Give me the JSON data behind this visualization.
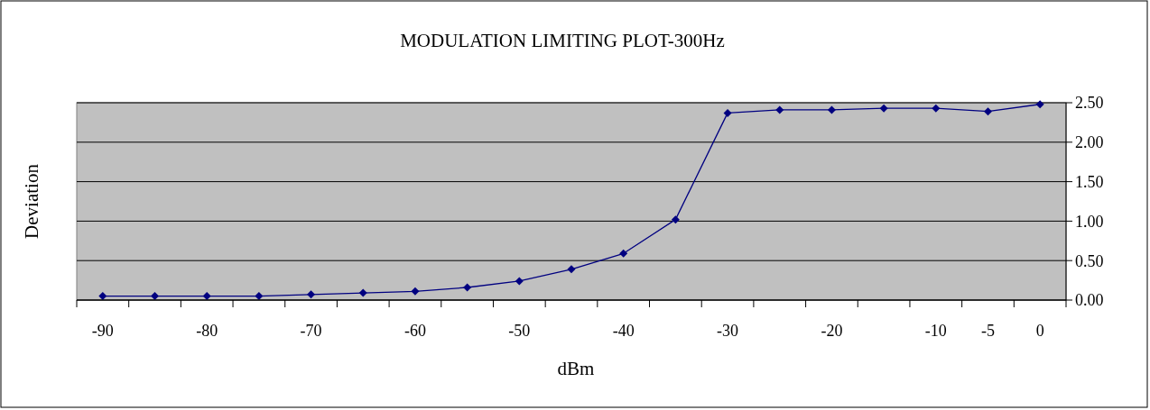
{
  "chart_data": {
    "type": "line",
    "title": "MODULATION LIMITING PLOT-300Hz",
    "xlabel": "dBm",
    "ylabel": "Deviation",
    "categories": [
      "-90",
      null,
      "-80",
      null,
      "-70",
      null,
      "-60",
      null,
      "-50",
      null,
      "-40",
      null,
      "-30",
      null,
      "-20",
      null,
      "-10",
      "-5",
      "0"
    ],
    "series": [
      {
        "color": "#000080",
        "values": [
          0.05,
          0.05,
          0.05,
          0.05,
          0.07,
          0.09,
          0.11,
          0.16,
          0.24,
          0.39,
          0.59,
          1.02,
          2.37,
          2.41,
          2.41,
          2.43,
          2.43,
          2.39,
          2.48
        ]
      }
    ],
    "ylim": [
      0,
      2.5
    ],
    "yticks": [
      {
        "value": 0,
        "label": "0.00"
      },
      {
        "value": 0.5,
        "label": "0.50"
      },
      {
        "value": 1,
        "label": "1.00"
      },
      {
        "value": 1.5,
        "label": "1.50"
      },
      {
        "value": 2,
        "label": "2.00"
      },
      {
        "value": 2.5,
        "label": "2.50"
      }
    ],
    "grid": "y",
    "marker": "diamond",
    "line_style": "solid"
  }
}
